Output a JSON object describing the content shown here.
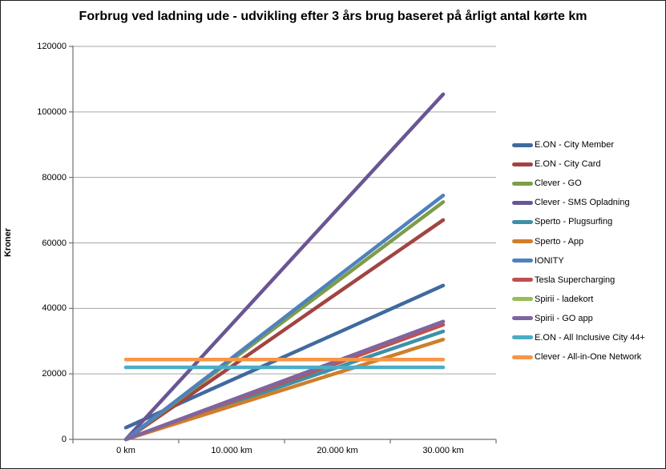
{
  "window": {
    "background": "#ffffff",
    "border_color": "#1f1f1f",
    "axis_color": "#6f6f6f",
    "gridline_color": "#a6a6a6"
  },
  "chart_data": {
    "type": "line",
    "title": "Forbrug ved ladning ude - udvikling efter 3 års brug baseret på årligt antal kørte km",
    "xlabel": "",
    "ylabel": "Kroner",
    "categories": [
      "0 km",
      "10.000 km",
      "20.000 km",
      "30.000 km"
    ],
    "ylim": [
      0,
      120000
    ],
    "yticks": [
      0,
      20000,
      40000,
      60000,
      80000,
      100000,
      120000
    ],
    "grid": true,
    "legend_position": "right",
    "series": [
      {
        "name": "E.ON - City Member",
        "color": "#406A9F",
        "values": [
          3600,
          18100,
          32500,
          47000
        ]
      },
      {
        "name": "E.ON - City Card",
        "color": "#A14442",
        "values": [
          0,
          22300,
          44700,
          67000
        ]
      },
      {
        "name": "Clever - GO",
        "color": "#7E9D4A",
        "values": [
          0,
          24200,
          48300,
          72500
        ]
      },
      {
        "name": "Clever - SMS Opladning",
        "color": "#6A5594",
        "values": [
          0,
          35100,
          70300,
          105400
        ]
      },
      {
        "name": "Sperto - Plugsurfing",
        "color": "#3E90A8",
        "values": [
          0,
          11000,
          22000,
          33000
        ]
      },
      {
        "name": "Sperto - App",
        "color": "#D07E2A",
        "values": [
          0,
          10200,
          20300,
          30500
        ]
      },
      {
        "name": "IONITY",
        "color": "#4F81BD",
        "values": [
          0,
          24800,
          49700,
          74500
        ]
      },
      {
        "name": "Tesla Supercharging",
        "color": "#C0504D",
        "values": [
          0,
          11700,
          23300,
          35000
        ]
      },
      {
        "name": "Spirii - ladekort",
        "color": "#9BBB59",
        "values": [
          0,
          12000,
          24000,
          36000
        ]
      },
      {
        "name": "Spirii - GO app",
        "color": "#8064A2",
        "values": [
          0,
          12000,
          24000,
          36000
        ]
      },
      {
        "name": "E.ON - All Inclusive City 44+",
        "color": "#4BACC6",
        "values": [
          22000,
          22000,
          22000,
          22000
        ]
      },
      {
        "name": "Clever - All-in-One Network",
        "color": "#F79646",
        "values": [
          24400,
          24400,
          24400,
          24400
        ]
      }
    ]
  }
}
